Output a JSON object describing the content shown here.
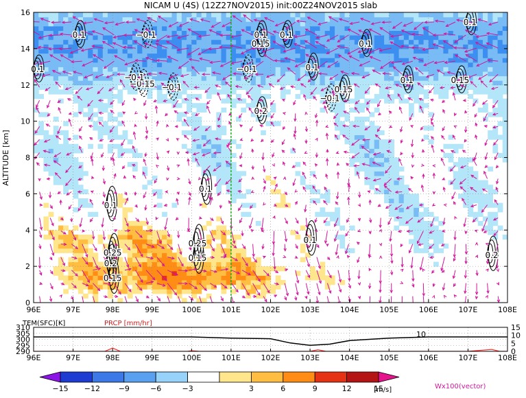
{
  "title": "NICAM U (4S) (12Z27NOV2015) init:00Z24NOV2015 slab",
  "colors": {
    "neg_strong": "#1e5ed6",
    "neg_mid": "#3c8ff0",
    "neg_light": "#78bbf5",
    "neg_pale": "#b4e6fa",
    "pos_pale": "#ffe68c",
    "pos_light": "#ffbe41",
    "pos_mid": "#ff8c14",
    "pos_strong": "#e63214",
    "pos_dark": "#b41414",
    "vector": "#d2149b",
    "divider": "#14b414",
    "precip": "#ff2828"
  },
  "chart_data": [
    {
      "type": "heatmap",
      "title": "NICAM U (4S) (12Z27NOV2015) init:00Z24NOV2015 slab",
      "xlabel": "",
      "ylabel": "ALTITUDE [km]",
      "x_ticks": [
        "96E",
        "97E",
        "98E",
        "99E",
        "100E",
        "101E",
        "102E",
        "103E",
        "104E",
        "105E",
        "106E",
        "107E",
        "108E"
      ],
      "y_ticks": [
        "0",
        "2",
        "4",
        "6",
        "8",
        "10",
        "12",
        "14",
        "16"
      ],
      "xlim": [
        96,
        108
      ],
      "ylim": [
        0,
        16
      ],
      "grid": true,
      "divider_longitude": 101,
      "contour_labels": [
        {
          "lon": 97.15,
          "alt": 14.6,
          "text": "0.1"
        },
        {
          "lon": 96.1,
          "alt": 12.7,
          "text": "0.1"
        },
        {
          "lon": 98.85,
          "alt": 14.6,
          "text": "−0.1"
        },
        {
          "lon": 98.75,
          "alt": 11.9,
          "text": "−0.15"
        },
        {
          "lon": 98.55,
          "alt": 12.25,
          "text": "−0.1"
        },
        {
          "lon": 99.5,
          "alt": 11.7,
          "text": "−0.1"
        },
        {
          "lon": 100.35,
          "alt": 6.1,
          "text": "0.1"
        },
        {
          "lon": 97.95,
          "alt": 5.2,
          "text": "0.1"
        },
        {
          "lon": 100.15,
          "alt": 3.1,
          "text": "0.25"
        },
        {
          "lon": 100.15,
          "alt": 2.3,
          "text": "0.15"
        },
        {
          "lon": 98.0,
          "alt": 2.6,
          "text": "0.25"
        },
        {
          "lon": 97.95,
          "alt": 2.0,
          "text": "0.2"
        },
        {
          "lon": 98.0,
          "alt": 1.2,
          "text": "0.15"
        },
        {
          "lon": 101.4,
          "alt": 12.7,
          "text": "−0.1"
        },
        {
          "lon": 101.75,
          "alt": 14.6,
          "text": "0.1"
        },
        {
          "lon": 101.75,
          "alt": 14.1,
          "text": "0.15"
        },
        {
          "lon": 101.75,
          "alt": 10.4,
          "text": "0.2"
        },
        {
          "lon": 102.4,
          "alt": 14.6,
          "text": "0.1"
        },
        {
          "lon": 103.05,
          "alt": 12.8,
          "text": "0.1"
        },
        {
          "lon": 103.5,
          "alt": 11.1,
          "text": "−0.1"
        },
        {
          "lon": 103.85,
          "alt": 11.6,
          "text": "0.15"
        },
        {
          "lon": 104.4,
          "alt": 14.1,
          "text": "0.1"
        },
        {
          "lon": 105.45,
          "alt": 12.1,
          "text": "0.1"
        },
        {
          "lon": 106.8,
          "alt": 12.1,
          "text": "0.15"
        },
        {
          "lon": 107.05,
          "alt": 15.3,
          "text": "0.1"
        },
        {
          "lon": 103.0,
          "alt": 3.3,
          "text": "0.1"
        },
        {
          "lon": 107.6,
          "alt": 2.45,
          "text": "0.2"
        }
      ]
    },
    {
      "type": "line",
      "title": "",
      "series": [
        {
          "name": "TEM(SFC)[K]",
          "x": [
            96,
            97,
            98,
            99,
            100,
            101,
            102,
            102.5,
            103,
            103.5,
            104,
            104.5,
            105,
            105.5,
            106,
            107,
            108
          ],
          "values": [
            302,
            302,
            302,
            302,
            302,
            301,
            300.5,
            297,
            295,
            296,
            299,
            300,
            301,
            301.5,
            302,
            302,
            302
          ]
        },
        {
          "name": "PRCP [mm/hr]",
          "x": [
            96,
            97,
            97.8,
            98,
            98.2,
            99,
            99.9,
            100,
            100.2,
            101,
            102,
            103,
            103.2,
            103.4,
            104,
            105,
            106,
            107,
            107.6,
            107.8,
            108
          ],
          "values": [
            0,
            0,
            0,
            2,
            0,
            0,
            0,
            0.4,
            0,
            0,
            0,
            0,
            1,
            0,
            0,
            0,
            0,
            0,
            1.2,
            0,
            0
          ]
        }
      ],
      "x_ticks": [
        "96E",
        "97E",
        "98E",
        "99E",
        "100E",
        "101E",
        "102E",
        "103E",
        "104E",
        "105E",
        "106E",
        "107E",
        "108E"
      ],
      "y_ticks_left": [
        "290",
        "295",
        "300",
        "305",
        "310"
      ],
      "y_ticks_right": [
        "0",
        "5",
        "10",
        "15"
      ],
      "ylim_left": [
        290,
        310
      ],
      "ylim_right": [
        0,
        15
      ],
      "annotation": "10"
    }
  ],
  "colorbar": {
    "labels": [
      "−15",
      "−12",
      "−9",
      "−6",
      "−3",
      "3",
      "6",
      "9",
      "12",
      "15"
    ],
    "unit": "[m/s]"
  },
  "vector_legend": "Wx100(vector)"
}
